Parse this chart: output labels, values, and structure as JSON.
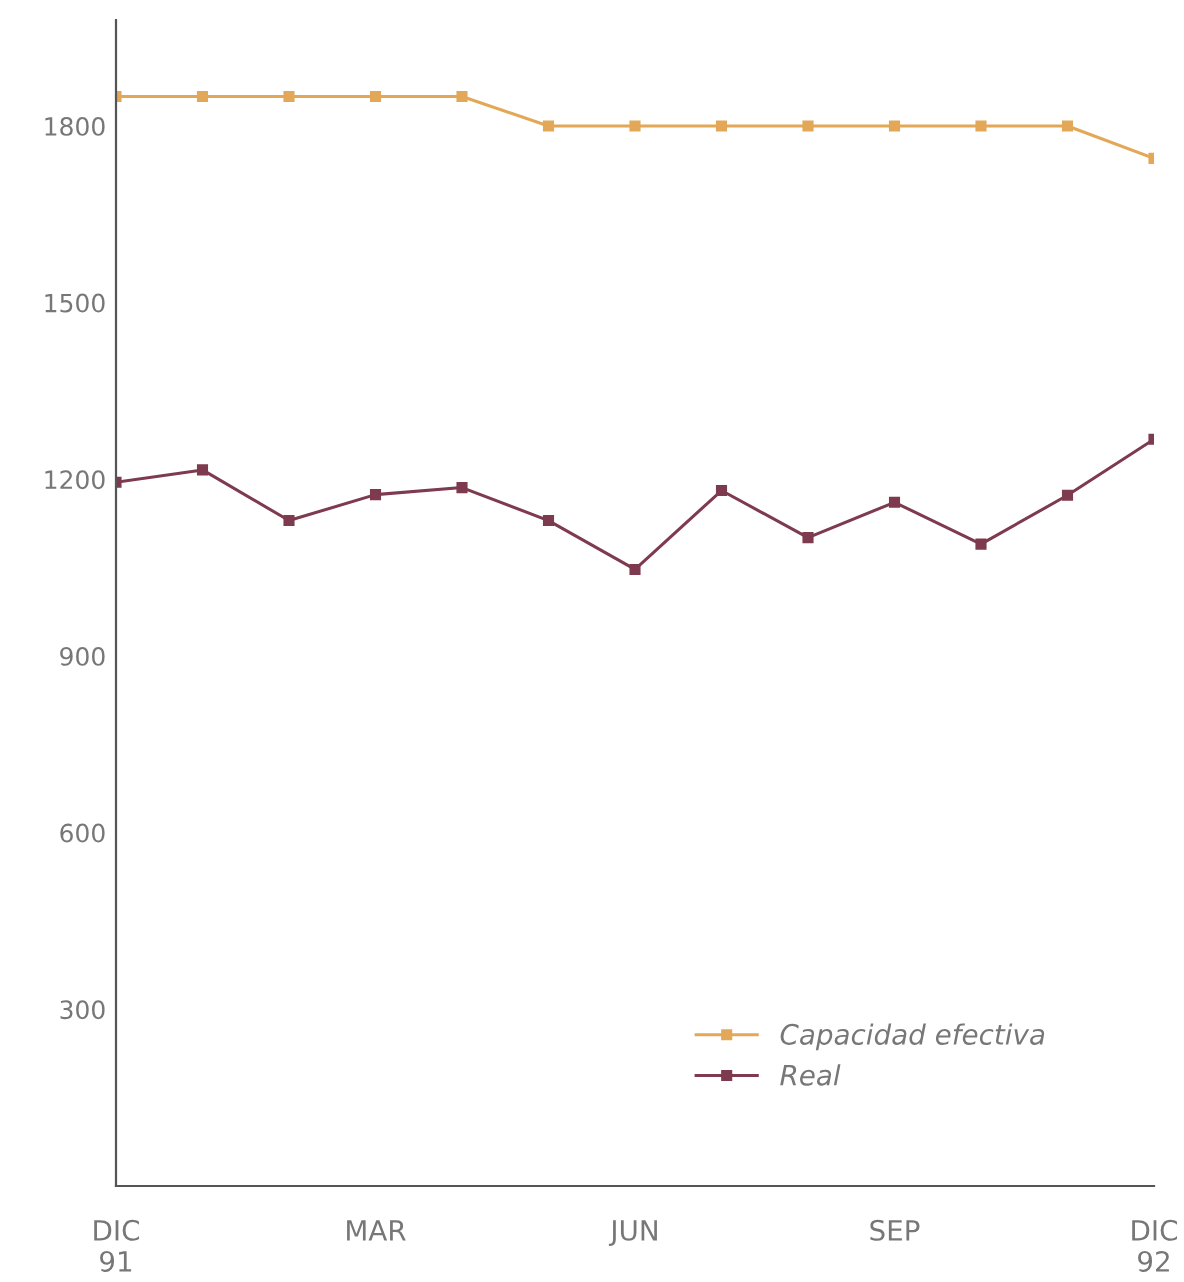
{
  "chart_data": {
    "type": "line",
    "categories": [
      "DIC\n91",
      null,
      null,
      "MAR",
      null,
      null,
      "JUN",
      null,
      null,
      "SEP",
      null,
      null,
      "DIC\n92"
    ],
    "series": [
      {
        "name": "Capacidad efectiva",
        "color": "#e3a857",
        "values": [
          1850,
          1850,
          1850,
          1850,
          1850,
          1800,
          1800,
          1800,
          1800,
          1800,
          1800,
          1800,
          1745
        ]
      },
      {
        "name": "Real",
        "color": "#7e3a4e",
        "values": [
          1195,
          1216,
          1130,
          1174,
          1186,
          1130,
          1047,
          1181,
          1101,
          1161,
          1090,
          1173,
          1268
        ]
      }
    ],
    "ylim": [
      0,
      1980
    ],
    "yticks": [
      300,
      600,
      900,
      1200,
      1500,
      1800
    ],
    "grid": false,
    "legend": "bottom right",
    "marker": "square",
    "line_style": "solid"
  }
}
